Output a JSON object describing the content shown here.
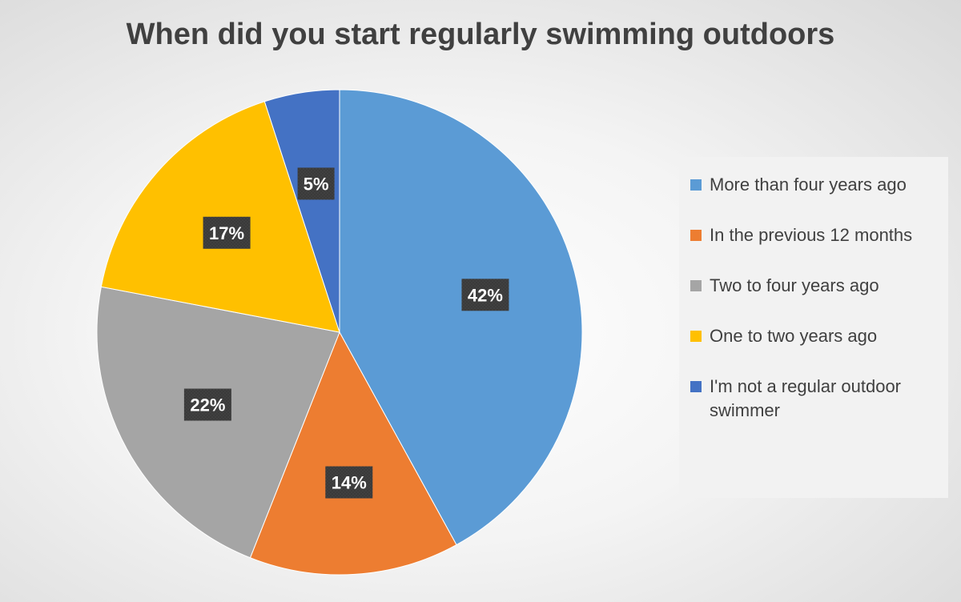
{
  "chart_data": {
    "type": "pie",
    "title": "When did you start regularly swimming outdoors",
    "slices": [
      {
        "label": "More than four years ago",
        "value": 42,
        "display": "42%",
        "color": "#5b9bd5"
      },
      {
        "label": "In the previous 12 months",
        "value": 14,
        "display": "14%",
        "color": "#ed7d31"
      },
      {
        "label": "Two to four years ago",
        "value": 22,
        "display": "22%",
        "color": "#a5a5a5"
      },
      {
        "label": "One to two years ago",
        "value": 17,
        "display": "17%",
        "color": "#ffc000"
      },
      {
        "label": "I'm not a regular outdoor swimmer",
        "value": 5,
        "display": "5%",
        "color": "#4472c4"
      }
    ],
    "legend_position": "right",
    "data_label_style": "dark box, white bold text"
  }
}
